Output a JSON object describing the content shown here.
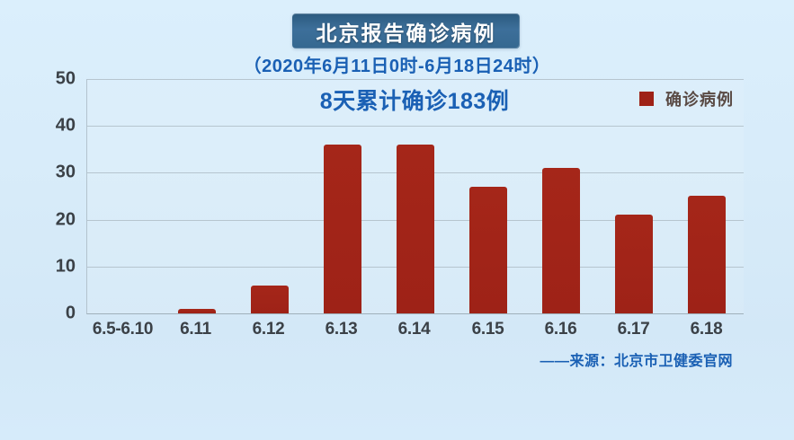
{
  "header": {
    "title": "北京报告确诊病例",
    "subtitle": "（2020年6月11日0时-6月18日24时）"
  },
  "chart_data": {
    "type": "bar",
    "title": "8天累计确诊183例",
    "categories": [
      "6.5-6.10",
      "6.11",
      "6.12",
      "6.13",
      "6.14",
      "6.15",
      "6.16",
      "6.17",
      "6.18"
    ],
    "values": [
      0,
      1,
      6,
      36,
      36,
      27,
      31,
      21,
      25
    ],
    "series_name": "确诊病例",
    "total_label": "8天累计确诊183例",
    "total": 183,
    "xlabel": "",
    "ylabel": "",
    "ylim": [
      0,
      50
    ],
    "yticks": [
      0,
      10,
      20,
      30,
      40,
      50
    ],
    "grid": true,
    "legend_position": "top-right",
    "bar_color": "#9e2217"
  },
  "legend": {
    "label": "确诊病例"
  },
  "source": {
    "text": "——来源：北京市卫健委官网"
  },
  "colors": {
    "accent_blue": "#1a60b4",
    "bar_red": "#9e2217",
    "header_box_blue": "#356890",
    "background_blue": "#d7ebf9",
    "tick_text": "#3b4147"
  }
}
